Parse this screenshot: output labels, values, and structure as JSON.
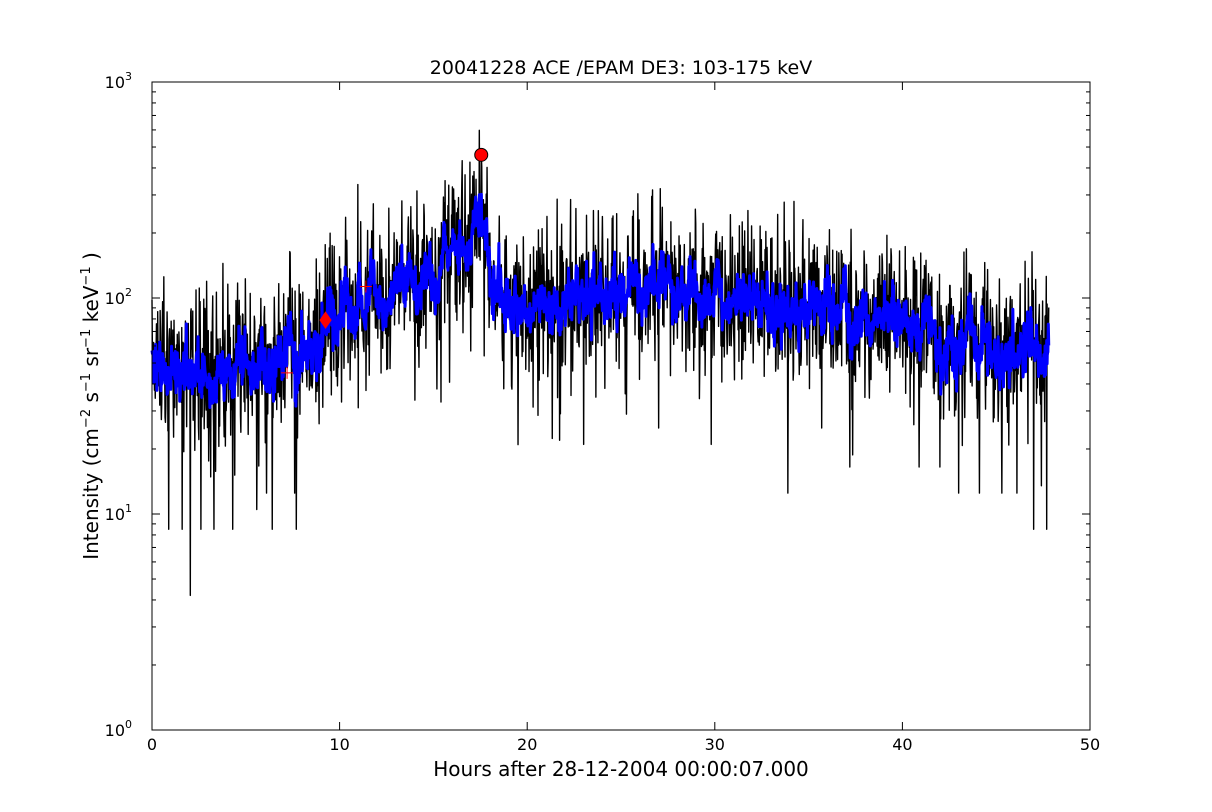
{
  "chart_data": {
    "type": "line",
    "title": "20041228 ACE /EPAM DE3: 103-175 keV",
    "xlabel": "Hours after 28-12-2004 00:00:07.000",
    "ylabel": {
      "prefix": "Intensity (cm",
      "sup1": "−2",
      "mid1": " s",
      "sup2": "−1",
      "mid2": " sr",
      "sup3": "−1",
      "mid3": " keV",
      "sup4": "−1",
      "suffix": " )"
    },
    "xlim": [
      0,
      50
    ],
    "ylim": [
      1,
      1000
    ],
    "yscale": "log",
    "grid": false,
    "xticks": [
      "0",
      "10",
      "20",
      "30",
      "40",
      "50"
    ],
    "xtick_values": [
      0,
      10,
      20,
      30,
      40,
      50
    ],
    "yticks": [
      {
        "value": 1,
        "base": "10",
        "exp": "0"
      },
      {
        "value": 10,
        "base": "10",
        "exp": "1"
      },
      {
        "value": 100,
        "base": "10",
        "exp": "2"
      },
      {
        "value": 1000,
        "base": "10",
        "exp": "3"
      }
    ],
    "series": [
      {
        "style": "raw",
        "color": "#000000",
        "x_start": 0.0,
        "x_end": 47.8,
        "envelope": [
          [
            0,
            48
          ],
          [
            2,
            45
          ],
          [
            4,
            46
          ],
          [
            6,
            47
          ],
          [
            8,
            55
          ],
          [
            9.2,
            70
          ],
          [
            10,
            85
          ],
          [
            12,
            100
          ],
          [
            14,
            125
          ],
          [
            16,
            150
          ],
          [
            17.0,
            170
          ],
          [
            17.3,
            230
          ],
          [
            17.55,
            330
          ],
          [
            17.8,
            180
          ],
          [
            18.3,
            100
          ],
          [
            20,
            95
          ],
          [
            22,
            95
          ],
          [
            24,
            100
          ],
          [
            26,
            110
          ],
          [
            30,
            100
          ],
          [
            35,
            90
          ],
          [
            40,
            75
          ],
          [
            45,
            60
          ],
          [
            47.8,
            55
          ]
        ],
        "noise_dex": 0.17,
        "min_dips": [
          [
            2.05,
            4.2
          ],
          [
            0.9,
            8.5
          ],
          [
            1.6,
            8.5
          ],
          [
            2.6,
            8.5
          ],
          [
            3.3,
            8.5
          ],
          [
            4.3,
            8.5
          ],
          [
            6.4,
            8.5
          ],
          [
            7.7,
            8.5
          ],
          [
            6.1,
            12.5
          ],
          [
            7.6,
            12.5
          ],
          [
            10.1,
            33
          ],
          [
            15.4,
            33
          ],
          [
            23.0,
            21
          ],
          [
            25.3,
            29
          ],
          [
            27.0,
            25
          ],
          [
            29.8,
            21
          ],
          [
            33.9,
            12.5
          ],
          [
            35.7,
            25
          ],
          [
            37.2,
            16.5
          ],
          [
            40.9,
            16.5
          ],
          [
            42.0,
            16.5
          ],
          [
            43.0,
            12.5
          ],
          [
            44.1,
            12.5
          ],
          [
            45.3,
            12.5
          ],
          [
            46.1,
            12.5
          ],
          [
            47.0,
            8.5
          ],
          [
            47.7,
            8.5
          ]
        ]
      },
      {
        "style": "smoothed",
        "color": "#0000ff",
        "x_start": 0.0,
        "x_end": 47.8
      }
    ],
    "markers": [
      {
        "x": 7.2,
        "y": 45,
        "shape": "plus",
        "color": "#ff0000"
      },
      {
        "x": 9.25,
        "y": 79,
        "shape": "diamond",
        "color": "#ff0000"
      },
      {
        "x": 11.4,
        "y": 113,
        "shape": "plus",
        "color": "#ff0000"
      },
      {
        "x": 17.55,
        "y": 460,
        "shape": "circle",
        "color": "#ff0000"
      }
    ]
  }
}
